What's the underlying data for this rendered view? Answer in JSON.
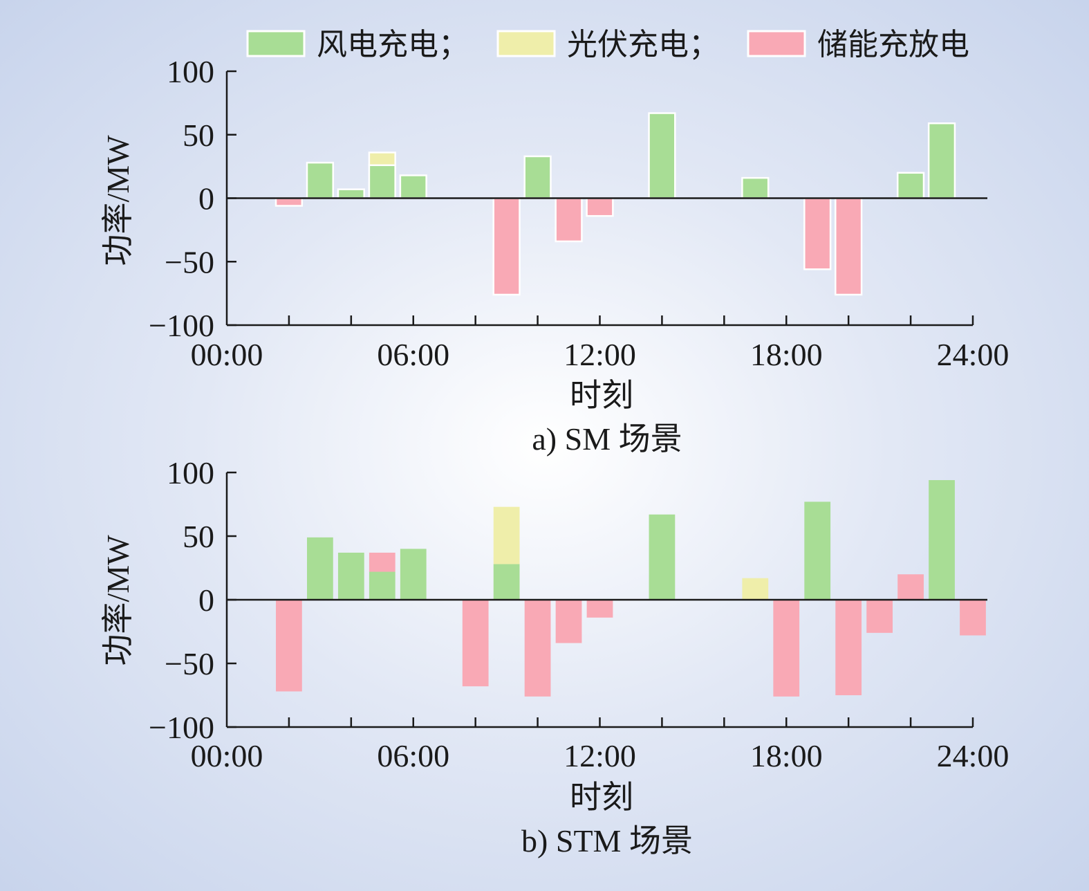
{
  "legend": [
    {
      "label": "风电充电；",
      "color": "#a8dd95"
    },
    {
      "label": "光伏充电；",
      "color": "#efeeaa"
    },
    {
      "label": "储能充放电",
      "color": "#f9a9b5"
    }
  ],
  "chart_data": [
    {
      "type": "bar",
      "stacked": true,
      "caption": "a) SM 场景",
      "xlabel": "时刻",
      "ylabel": "功率/MW",
      "ylim": [
        -100,
        100
      ],
      "yticks": [
        "100",
        "50",
        "0",
        "−50",
        "−100"
      ],
      "xticks": [
        "00:00",
        "06:00",
        "12:00",
        "18:00",
        "24:00"
      ],
      "x_hours": [
        2,
        3,
        4,
        5,
        6,
        7,
        8,
        9,
        10,
        11,
        12,
        13,
        14,
        15,
        16,
        17,
        18,
        19,
        20,
        21,
        22,
        23
      ],
      "series": [
        {
          "name": "风电充电",
          "values": [
            0,
            28,
            7,
            26,
            18,
            0,
            0,
            0,
            33,
            0,
            0,
            0,
            67,
            0,
            0,
            16,
            0,
            0,
            0,
            0,
            20,
            59
          ]
        },
        {
          "name": "光伏充电",
          "values": [
            0,
            0,
            0,
            10,
            0,
            0,
            0,
            0,
            0,
            0,
            0,
            0,
            0,
            0,
            0,
            0,
            0,
            0,
            0,
            0,
            0,
            0
          ]
        },
        {
          "name": "储能充放电",
          "values": [
            -6,
            0,
            0,
            0,
            0,
            0,
            0,
            -76,
            0,
            -34,
            -14,
            0,
            0,
            0,
            0,
            0,
            0,
            -56,
            -76,
            0,
            0,
            0
          ]
        }
      ]
    },
    {
      "type": "bar",
      "stacked": true,
      "caption": "b) STM 场景",
      "xlabel": "时刻",
      "ylabel": "功率/MW",
      "ylim": [
        -100,
        100
      ],
      "yticks": [
        "100",
        "50",
        "0",
        "−50",
        "−100"
      ],
      "xticks": [
        "00:00",
        "06:00",
        "12:00",
        "18:00",
        "24:00"
      ],
      "x_hours": [
        2,
        3,
        4,
        5,
        6,
        7,
        8,
        9,
        10,
        11,
        12,
        13,
        14,
        15,
        16,
        17,
        18,
        19,
        20,
        21,
        22,
        23,
        24
      ],
      "series": [
        {
          "name": "风电充电",
          "values": [
            0,
            49,
            37,
            22,
            40,
            0,
            0,
            28,
            0,
            0,
            0,
            0,
            67,
            0,
            0,
            0,
            0,
            77,
            0,
            0,
            0,
            94,
            0
          ]
        },
        {
          "name": "光伏充电",
          "values": [
            0,
            0,
            0,
            0,
            0,
            0,
            0,
            45,
            0,
            0,
            0,
            0,
            0,
            0,
            0,
            17,
            0,
            0,
            0,
            0,
            0,
            0,
            0
          ]
        },
        {
          "name": "储能充放电",
          "values": [
            -72,
            0,
            0,
            15,
            0,
            0,
            -68,
            0,
            -76,
            -34,
            -14,
            0,
            0,
            0,
            0,
            0,
            -76,
            0,
            -75,
            -26,
            20,
            0,
            -28
          ]
        }
      ]
    }
  ]
}
